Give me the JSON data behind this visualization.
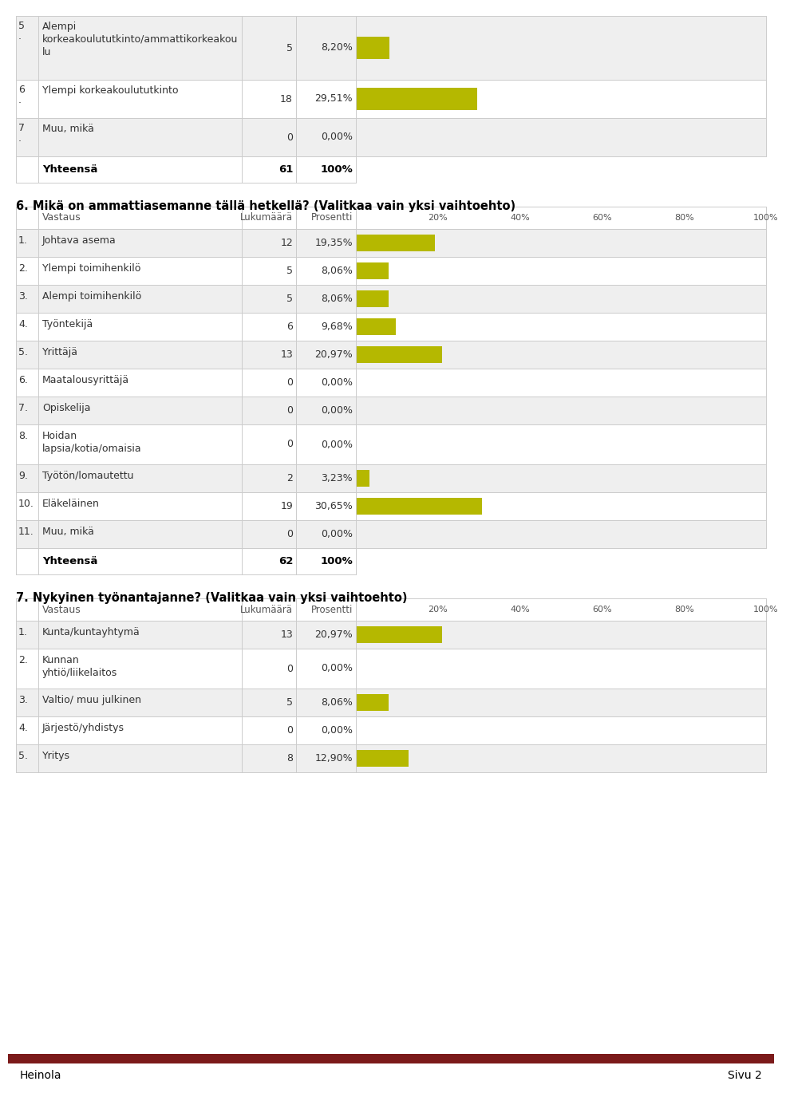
{
  "background_color": "#ffffff",
  "bar_color": "#b5b800",
  "cell_bg_odd": "#efefef",
  "cell_bg_even": "#ffffff",
  "border_color": "#cccccc",
  "header_text_color": "#555555",
  "text_color": "#333333",
  "section1": {
    "rows": [
      {
        "num": "5\n.",
        "label": "Alempi\nkorkeakoulututkinto/ammattikorkeakou\nlu",
        "count": "5",
        "pct": "8,20%",
        "value": 8.2
      },
      {
        "num": "6\n.",
        "label": "Ylempi korkeakoulututkinto",
        "count": "18",
        "pct": "29,51%",
        "value": 29.51
      },
      {
        "num": "7\n.",
        "label": "Muu, mikä",
        "count": "0",
        "pct": "0,00%",
        "value": 0.0
      }
    ],
    "total_label": "Yhteensä",
    "total_count": "61",
    "total_pct": "100%"
  },
  "section2_title": "6. Mikä on ammattiasemanne tällä hetkellä? (Valitkaa vain yksi vaihtoehto)",
  "section2": {
    "rows": [
      {
        "num": "1.",
        "label": "Johtava asema",
        "count": "12",
        "pct": "19,35%",
        "value": 19.35
      },
      {
        "num": "2.",
        "label": "Ylempi toimihenkilö",
        "count": "5",
        "pct": "8,06%",
        "value": 8.06
      },
      {
        "num": "3.",
        "label": "Alempi toimihenkilö",
        "count": "5",
        "pct": "8,06%",
        "value": 8.06
      },
      {
        "num": "4.",
        "label": "Työntekijä",
        "count": "6",
        "pct": "9,68%",
        "value": 9.68
      },
      {
        "num": "5.",
        "label": "Yrittäjä",
        "count": "13",
        "pct": "20,97%",
        "value": 20.97
      },
      {
        "num": "6.",
        "label": "Maatalousyrittäjä",
        "count": "0",
        "pct": "0,00%",
        "value": 0.0
      },
      {
        "num": "7.",
        "label": "Opiskelija",
        "count": "0",
        "pct": "0,00%",
        "value": 0.0
      },
      {
        "num": "8.",
        "label": "Hoidan\nlapsia/kotia/omaisia",
        "count": "0",
        "pct": "0,00%",
        "value": 0.0
      },
      {
        "num": "9.",
        "label": "Työtön/lomautettu",
        "count": "2",
        "pct": "3,23%",
        "value": 3.23
      },
      {
        "num": "10.",
        "label": "Eläkeläinen",
        "count": "19",
        "pct": "30,65%",
        "value": 30.65
      },
      {
        "num": "11.",
        "label": "Muu, mikä",
        "count": "0",
        "pct": "0,00%",
        "value": 0.0
      }
    ],
    "total_label": "Yhteensä",
    "total_count": "62",
    "total_pct": "100%"
  },
  "section3_title": "7. Nykyinen työnantajanne? (Valitkaa vain yksi vaihtoehto)",
  "section3": {
    "rows": [
      {
        "num": "1.",
        "label": "Kunta/kuntayhtymä",
        "count": "13",
        "pct": "20,97%",
        "value": 20.97
      },
      {
        "num": "2.",
        "label": "Kunnan\nyhtiö/liikelaitos",
        "count": "0",
        "pct": "0,00%",
        "value": 0.0
      },
      {
        "num": "3.",
        "label": "Valtio/ muu julkinen",
        "count": "5",
        "pct": "8,06%",
        "value": 8.06
      },
      {
        "num": "4.",
        "label": "Järjestö/yhdistys",
        "count": "0",
        "pct": "0,00%",
        "value": 0.0
      },
      {
        "num": "5.",
        "label": "Yritys",
        "count": "8",
        "pct": "12,90%",
        "value": 12.9
      }
    ]
  },
  "tick_labels": [
    "20%",
    "40%",
    "60%",
    "80%",
    "100%"
  ],
  "header_vastaus": "Vastaus",
  "header_lkm": "Lukumäärä",
  "header_pct": "Prosentti",
  "footer_left": "Heinola",
  "footer_right": "Sivu 2",
  "footer_bar_color": "#7b1a1a"
}
